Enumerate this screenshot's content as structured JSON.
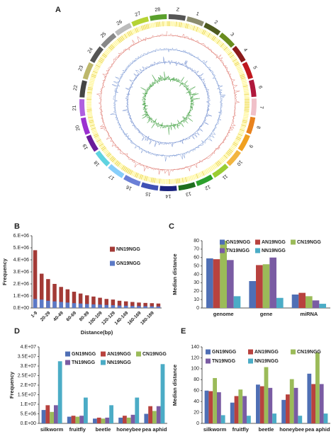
{
  "chart_data": [
    {
      "type": "circos",
      "label": "A",
      "chromosomes": [
        "Z",
        "1",
        "2",
        "3",
        "4",
        "5",
        "6",
        "7",
        "8",
        "9",
        "10",
        "11",
        "12",
        "13",
        "14",
        "15",
        "16",
        "17",
        "18",
        "19",
        "20",
        "21",
        "22",
        "23",
        "24",
        "25",
        "26",
        "27",
        "28"
      ],
      "colors": [
        "#555555",
        "#8c8c6e",
        "#4e5a1e",
        "#6a8c1e",
        "#8b1a1a",
        "#c0181e",
        "#b0183c",
        "#f0c0c8",
        "#e8821e",
        "#f0a020",
        "#f2b540",
        "#9acd32",
        "#2ca02c",
        "#1e6e1e",
        "#1a237e",
        "#3f51b5",
        "#6a7fd6",
        "#87cefa",
        "#5fd3e0",
        "#6a1b9a",
        "#9b30d0",
        "#b05fe0",
        "#444444",
        "#bdb76b",
        "#555555",
        "#888888",
        "#bbbbbb",
        "#b5d334",
        "#5aa02c"
      ]
    },
    {
      "type": "bar",
      "label": "B",
      "barmode": "overlay",
      "categories": [
        "1-9",
        null,
        "20-29",
        null,
        "40-49",
        null,
        "60-69",
        null,
        "80-89",
        null,
        "100-109",
        null,
        "120-129",
        null,
        "140-149",
        null,
        "160-169",
        null,
        "180-189",
        null
      ],
      "series": [
        {
          "name": "NN19NGG",
          "color": "#a33a36",
          "values": [
            4800000,
            2850000,
            2400000,
            2000000,
            1750000,
            1550000,
            1350000,
            1200000,
            1050000,
            950000,
            850000,
            750000,
            700000,
            600000,
            550000,
            500000,
            450000,
            420000,
            400000,
            370000
          ]
        },
        {
          "name": "GN19NGG",
          "color": "#5b79c6",
          "values": [
            750000,
            700000,
            600000,
            550000,
            500000,
            450000,
            400000,
            370000,
            330000,
            300000,
            280000,
            250000,
            230000,
            200000,
            190000,
            170000,
            160000,
            150000,
            140000,
            130000
          ]
        }
      ],
      "x_label": "Distance(bp)",
      "y_label": "Frequency",
      "ylim": [
        0,
        6000000
      ],
      "yticks": [
        {
          "value": 0,
          "label": "0.E+00"
        },
        {
          "value": 1000000,
          "label": "1.E+06"
        },
        {
          "value": 2000000,
          "label": "2.E+06"
        },
        {
          "value": 3000000,
          "label": "3.E+06"
        },
        {
          "value": 4000000,
          "label": "4.E+06"
        },
        {
          "value": 5000000,
          "label": "5.E+06"
        },
        {
          "value": 6000000,
          "label": "6.E+06"
        }
      ]
    },
    {
      "type": "bar",
      "label": "C",
      "barmode": "group",
      "categories": [
        "genome",
        "gene",
        "miRNA"
      ],
      "series": [
        {
          "name": "GN19NGG",
          "color": "#4f6fb5",
          "values": [
            59,
            32,
            16
          ]
        },
        {
          "name": "AN19NGG",
          "color": "#b8423e",
          "values": [
            58,
            51,
            18
          ]
        },
        {
          "name": "CN19NGG",
          "color": "#9bbb59",
          "values": [
            80,
            52,
            14
          ]
        },
        {
          "name": "TN19NGG",
          "color": "#7a5ca3",
          "values": [
            57,
            60,
            9
          ]
        },
        {
          "name": "NN19NGG",
          "color": "#4bacc6",
          "values": [
            14,
            12,
            5
          ]
        }
      ],
      "y_label": "Median distance",
      "ylim": [
        0,
        80
      ],
      "yticks": [
        0,
        10,
        20,
        30,
        40,
        50,
        60,
        70,
        80
      ]
    },
    {
      "type": "bar",
      "label": "D",
      "barmode": "group",
      "categories": [
        "silkworm",
        "fruitfly",
        "beetle",
        "honeybee",
        "pea aphid"
      ],
      "series": [
        {
          "name": "GN19NGG",
          "color": "#4f6fb5",
          "values": [
            7000000,
            3500000,
            2500000,
            3000000,
            5000000
          ]
        },
        {
          "name": "AN19NGG",
          "color": "#b8423e",
          "values": [
            9500000,
            4000000,
            3000000,
            4000000,
            9000000
          ]
        },
        {
          "name": "CN19NGG",
          "color": "#9bbb59",
          "values": [
            6000000,
            3500000,
            2500000,
            3000000,
            6500000
          ]
        },
        {
          "name": "TN19NGG",
          "color": "#7a5ca3",
          "values": [
            9500000,
            4000000,
            3000000,
            4500000,
            9000000
          ]
        },
        {
          "name": "NN19NGG",
          "color": "#4bacc6",
          "values": [
            32500000,
            13500000,
            9500000,
            13500000,
            31000000
          ]
        }
      ],
      "y_label": "Frequency",
      "ylim": [
        0,
        40000000
      ],
      "yticks": [
        {
          "value": 0,
          "label": "0.E+00"
        },
        {
          "value": 5000000,
          "label": "5.E+06"
        },
        {
          "value": 10000000,
          "label": "1.E+07"
        },
        {
          "value": 15000000,
          "label": "1.5E+07"
        },
        {
          "value": 20000000,
          "label": "2.E+07"
        },
        {
          "value": 25000000,
          "label": "2.5E+07"
        },
        {
          "value": 30000000,
          "label": "3.E+07"
        },
        {
          "value": 35000000,
          "label": "3.5E+07"
        },
        {
          "value": 40000000,
          "label": "4.E+07"
        }
      ]
    },
    {
      "type": "bar",
      "label": "E",
      "barmode": "group",
      "categories": [
        "silkworm",
        "fruitfly",
        "beetle",
        "honeybee",
        "pea aphid"
      ],
      "series": [
        {
          "name": "GN19NGG",
          "color": "#4f6fb5",
          "values": [
            60,
            38,
            71,
            43,
            91
          ]
        },
        {
          "name": "AN19NGG",
          "color": "#b8423e",
          "values": [
            59,
            50,
            68,
            53,
            72
          ]
        },
        {
          "name": "CN19NGG",
          "color": "#9bbb59",
          "values": [
            83,
            62,
            103,
            81,
            130
          ]
        },
        {
          "name": "TN19NGG",
          "color": "#7a5ca3",
          "values": [
            57,
            50,
            65,
            65,
            72
          ]
        },
        {
          "name": "NN19NGG",
          "color": "#4bacc6",
          "values": [
            15,
            14,
            18,
            14,
            18
          ]
        }
      ],
      "y_label": "Median distance",
      "ylim": [
        0,
        140
      ],
      "yticks": [
        0,
        20,
        40,
        60,
        80,
        100,
        120,
        140
      ]
    }
  ]
}
